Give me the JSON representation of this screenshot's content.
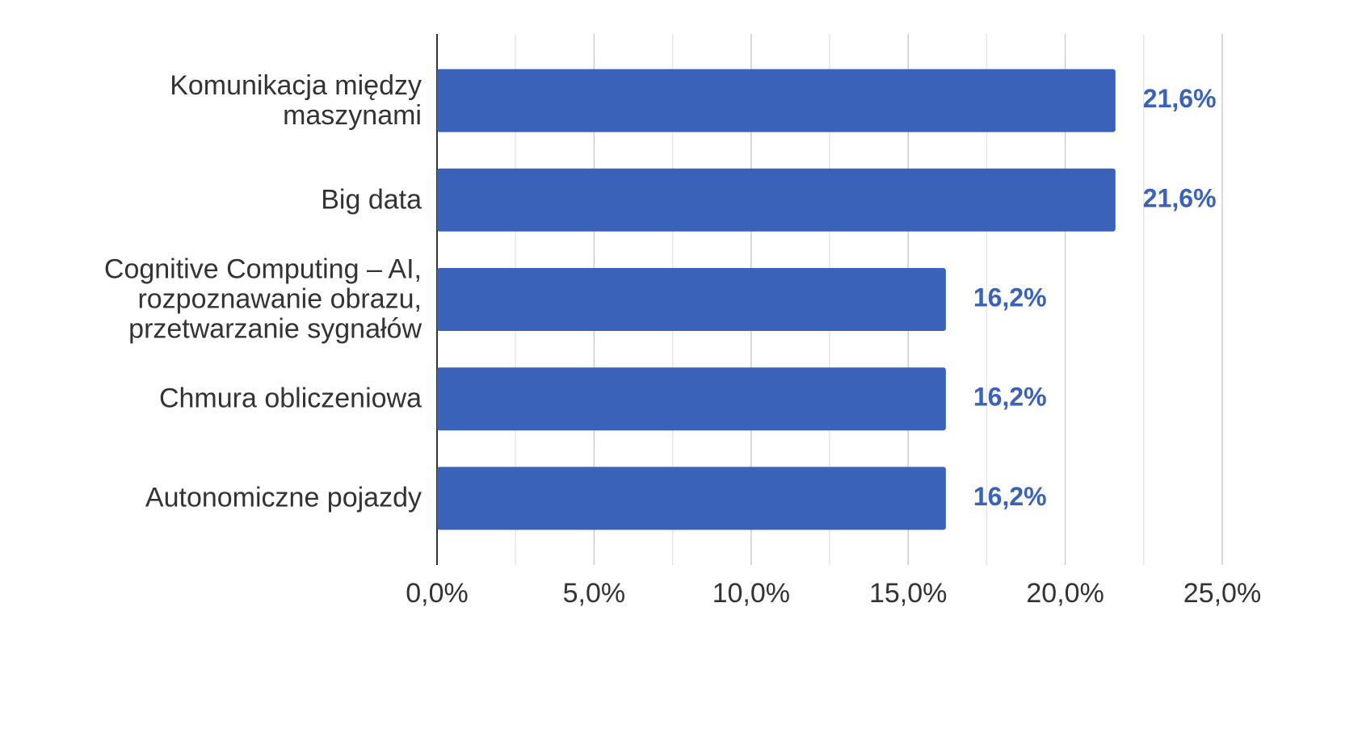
{
  "chart_data": {
    "type": "hbar",
    "categories": [
      "Komunikacja między maszynami",
      "Big data",
      "Cognitive Computing – AI, rozpoznawanie obrazu, przetwarzanie sygnałów",
      "Chmura obliczeniowa",
      "Autonomiczne pojazdy"
    ],
    "values": [
      21.6,
      21.6,
      16.2,
      16.2,
      16.2
    ],
    "value_labels": [
      "21,6%",
      "21,6%",
      "16,2%",
      "16,2%",
      "16,2%"
    ],
    "color": "#3a62b8",
    "xlim": [
      0,
      25
    ],
    "xticks": [
      {
        "value": 0,
        "label": "0,0%"
      },
      {
        "value": 5,
        "label": "5,0%"
      },
      {
        "value": 10,
        "label": "10,0%"
      },
      {
        "value": 15,
        "label": "15,0%"
      },
      {
        "value": 20,
        "label": "20,0%"
      },
      {
        "value": 25,
        "label": "25,0%"
      }
    ],
    "minor_xticks": [
      2.5,
      7.5,
      12.5,
      17.5,
      22.5
    ],
    "grid": true
  }
}
